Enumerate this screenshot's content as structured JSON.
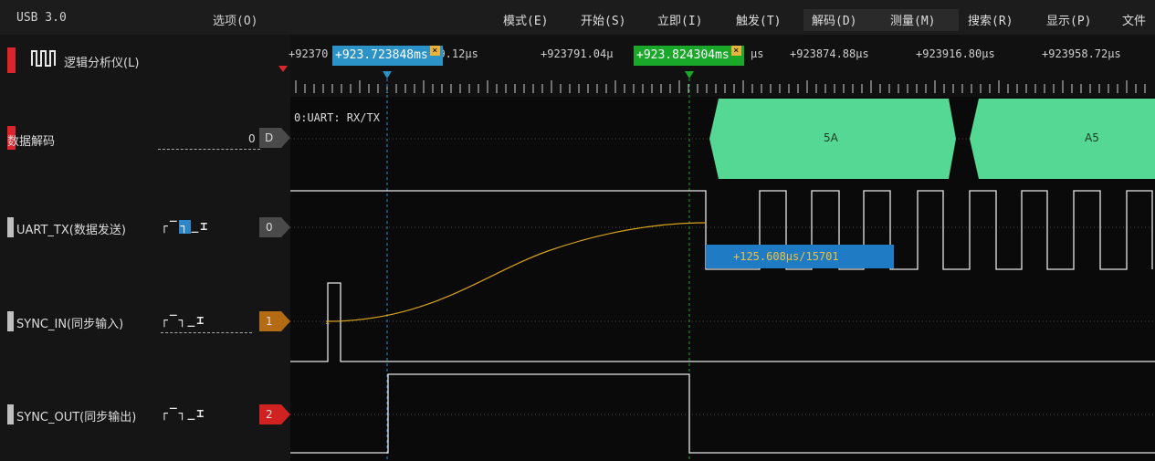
{
  "menubar": {
    "device": "USB 3.0",
    "options": "选项(O)",
    "items": [
      "模式(E)",
      "开始(S)",
      "立即(I)",
      "触发(T)",
      "解码(D)",
      "测量(M)",
      "搜索(R)",
      "显示(P)",
      "文件"
    ]
  },
  "analyzer": {
    "title": "逻辑分析仪(L)"
  },
  "ruler": {
    "ticks": [
      "+92370",
      "749.12μs",
      "+923791.04μ",
      "μs",
      "+923874.88μs",
      "+923916.80μs",
      "+923958.72μs"
    ]
  },
  "cursors": {
    "cursor1": {
      "label": "+923.723848ms",
      "color": "#2b93c8"
    },
    "cursor2": {
      "label": "+923.824304ms",
      "color": "#1aa82a"
    }
  },
  "channels": {
    "decode": {
      "name": "数据解码",
      "index": "0",
      "code": "D",
      "protocol": "0:UART: RX/TX"
    },
    "uart_tx": {
      "name": "UART_TX(数据发送)",
      "index": "0"
    },
    "sync_in": {
      "name": "SYNC_IN(同步输入)",
      "index": "1",
      "badge_color": "#b36b16"
    },
    "sync_out": {
      "name": "SYNC_OUT(同步输出)",
      "index": "2",
      "badge_color": "#d12222"
    }
  },
  "decoded_bytes": [
    {
      "value": "5A"
    },
    {
      "value": "A5"
    }
  ],
  "measurement": {
    "label": "+125.608μs/15701"
  },
  "colors": {
    "decode_fill": "#56d895",
    "signal": "#e6e6e6",
    "curve": "#d6a21e"
  }
}
